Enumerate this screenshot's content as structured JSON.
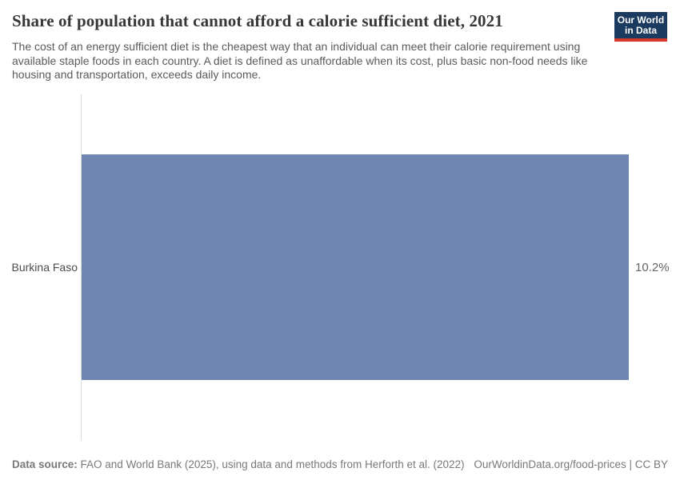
{
  "header": {
    "title": "Share of population that cannot afford a calorie sufficient diet, 2021",
    "subtitle": "The cost of an energy sufficient diet is the cheapest way that an individual can meet their calorie requirement using available staple foods in each country. A diet is defined as unaffordable when its cost, plus basic non-food needs like housing and transportation, exceeds daily income.",
    "logo": {
      "line1": "Our World",
      "line2": "in Data",
      "bg_color": "#1a3a5f",
      "accent_color": "#d7382e"
    }
  },
  "chart_data": {
    "type": "bar",
    "orientation": "horizontal",
    "title": "Share of population that cannot afford a calorie sufficient diet, 2021",
    "year": "2021",
    "categories": [
      "Burkina Faso"
    ],
    "values": [
      10.2
    ],
    "value_labels": [
      "10.2%"
    ],
    "xlabel": "",
    "ylabel": "",
    "xlim": [
      0,
      10.2
    ],
    "grid": false,
    "legend": "none",
    "bar_color": "#6e84b1",
    "axis_line_color": "#dcdcdc"
  },
  "footer": {
    "source_label": "Data source:",
    "source_text": " FAO and World Bank (2025), using data and methods from Herforth et al. (2022)",
    "link_text": "OurWorldinData.org/food-prices | CC BY"
  }
}
